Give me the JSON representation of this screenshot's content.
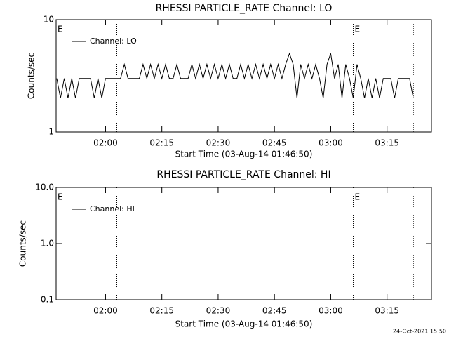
{
  "chart_data": [
    {
      "type": "line",
      "title": "RHESSI PARTICLE_RATE Channel: LO",
      "ylabel": "Counts/sec",
      "xlabel": "Start Time (03-Aug-14 01:46:50)",
      "log_y": true,
      "ylim": [
        1,
        10
      ],
      "yticks": [
        1,
        10
      ],
      "xlim": [
        "01:46:50",
        "03:26:50"
      ],
      "xticks": [
        "02:00",
        "02:15",
        "02:30",
        "02:45",
        "03:00",
        "03:15"
      ],
      "vlines": [
        "02:03",
        "03:06",
        "03:22"
      ],
      "markers": [
        {
          "x": "01:46:50",
          "label": "E"
        },
        {
          "x": "03:06",
          "label": "E"
        }
      ],
      "x": [
        "01:47",
        "01:48",
        "01:49",
        "01:50",
        "01:51",
        "01:52",
        "01:53",
        "01:54",
        "01:55",
        "01:56",
        "01:57",
        "01:58",
        "01:59",
        "02:00",
        "02:01",
        "02:02",
        "02:03",
        "02:04",
        "02:05",
        "02:06",
        "02:07",
        "02:08",
        "02:09",
        "02:10",
        "02:11",
        "02:12",
        "02:13",
        "02:14",
        "02:15",
        "02:16",
        "02:17",
        "02:18",
        "02:19",
        "02:20",
        "02:21",
        "02:22",
        "02:23",
        "02:24",
        "02:25",
        "02:26",
        "02:27",
        "02:28",
        "02:29",
        "02:30",
        "02:31",
        "02:32",
        "02:33",
        "02:34",
        "02:35",
        "02:36",
        "02:37",
        "02:38",
        "02:39",
        "02:40",
        "02:41",
        "02:42",
        "02:43",
        "02:44",
        "02:45",
        "02:46",
        "02:47",
        "02:48",
        "02:49",
        "02:50",
        "02:51",
        "02:52",
        "02:53",
        "02:54",
        "02:55",
        "02:56",
        "02:57",
        "02:58",
        "02:59",
        "03:00",
        "03:01",
        "03:02",
        "03:03",
        "03:04",
        "03:05",
        "03:06",
        "03:07",
        "03:08",
        "03:09",
        "03:10",
        "03:11",
        "03:12",
        "03:13",
        "03:14",
        "03:15",
        "03:16",
        "03:17",
        "03:18",
        "03:19",
        "03:20",
        "03:21",
        "03:22"
      ],
      "series": [
        {
          "name": "Channel: LO",
          "color": "#000000",
          "values": [
            3,
            2,
            3,
            2,
            3,
            2,
            3,
            3,
            3,
            3,
            2,
            3,
            2,
            3,
            3,
            3,
            3,
            3,
            4,
            3,
            3,
            3,
            3,
            4,
            3,
            4,
            3,
            4,
            3,
            4,
            3,
            3,
            4,
            3,
            3,
            3,
            4,
            3,
            4,
            3,
            4,
            3,
            4,
            3,
            4,
            3,
            4,
            3,
            3,
            4,
            3,
            4,
            3,
            4,
            3,
            4,
            3,
            4,
            3,
            4,
            3,
            4,
            5,
            4,
            2,
            4,
            3,
            4,
            3,
            4,
            3,
            2,
            4,
            5,
            3,
            4,
            2,
            4,
            3,
            2,
            4,
            3,
            2,
            3,
            2,
            3,
            2,
            3,
            3,
            3,
            2,
            3,
            3,
            3,
            3,
            2
          ]
        }
      ]
    },
    {
      "type": "line",
      "title": "RHESSI PARTICLE_RATE Channel: HI",
      "ylabel": "Counts/sec",
      "xlabel": "Start Time (03-Aug-14 01:46:50)",
      "log_y": true,
      "ylim": [
        0.1,
        10
      ],
      "yticks": [
        {
          "value": 0.1,
          "label": "0.1"
        },
        {
          "value": 1,
          "label": "1.0"
        },
        {
          "value": 10,
          "label": "10.0"
        }
      ],
      "xlim": [
        "01:46:50",
        "03:26:50"
      ],
      "xticks": [
        "02:00",
        "02:15",
        "02:30",
        "02:45",
        "03:00",
        "03:15"
      ],
      "vlines": [
        "02:03",
        "03:06",
        "03:22"
      ],
      "markers": [
        {
          "x": "01:46:50",
          "label": "E"
        },
        {
          "x": "03:06",
          "label": "E"
        }
      ],
      "x": [],
      "series": [
        {
          "name": "Channel: HI",
          "color": "#000000",
          "values": []
        }
      ]
    }
  ],
  "footer": "24-Oct-2021 15:50"
}
